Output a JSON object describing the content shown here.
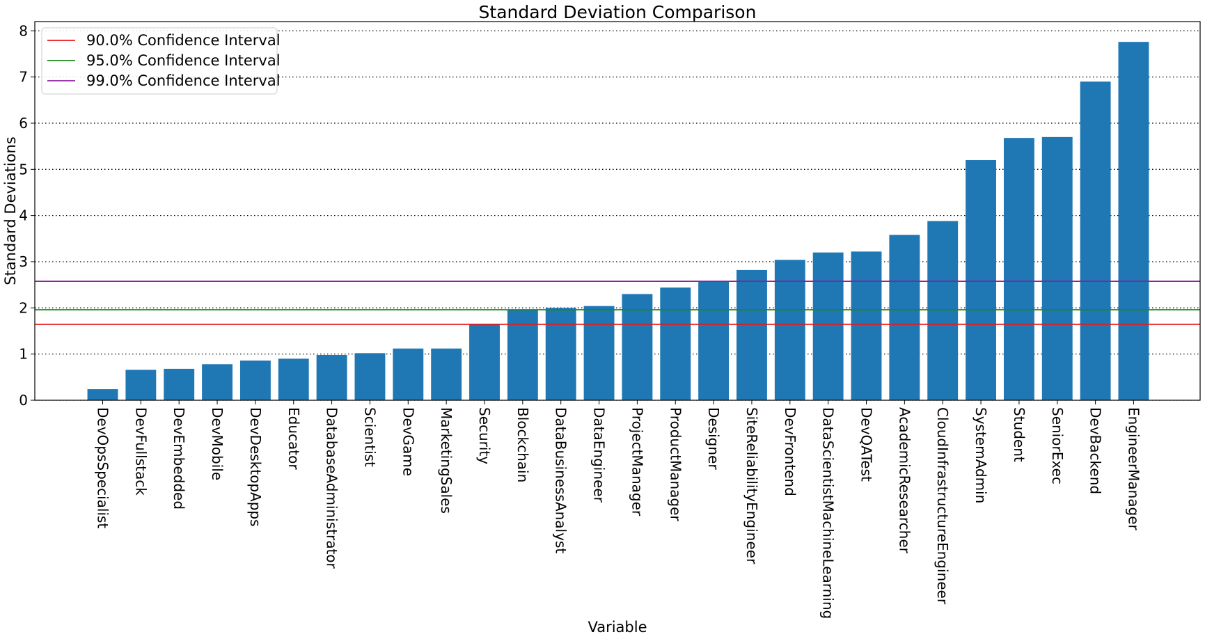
{
  "chart_data": {
    "type": "bar",
    "title": "Standard Deviation Comparison",
    "xlabel": "Variable",
    "ylabel": "Standard Deviations",
    "ylim": [
      0,
      8.2
    ],
    "yticks": [
      0,
      1,
      2,
      3,
      4,
      5,
      6,
      7,
      8
    ],
    "grid": "horizontal dotted",
    "bar_color": "#1f77b4",
    "categories": [
      "DevOpsSpecialist",
      "DevFullstack",
      "DevEmbedded",
      "DevMobile",
      "DevDesktopApps",
      "Educator",
      "DatabaseAdministrator",
      "Scientist",
      "DevGame",
      "MarketingSales",
      "Security",
      "Blockchain",
      "DataBusinessAnalyst",
      "DataEngineer",
      "ProjectManager",
      "ProductManager",
      "Designer",
      "SiteReliabilityEngineer",
      "DevFrontend",
      "DataScientistMachineLearning",
      "DevQATest",
      "AcademicResearcher",
      "CloudInfrastructureEngineer",
      "SystemAdmin",
      "Student",
      "SeniorExec",
      "DevBackend",
      "EngineerManager"
    ],
    "values": [
      0.24,
      0.66,
      0.68,
      0.78,
      0.86,
      0.9,
      0.98,
      1.02,
      1.12,
      1.12,
      1.64,
      1.96,
      2.0,
      2.04,
      2.3,
      2.44,
      2.58,
      2.82,
      3.04,
      3.2,
      3.22,
      3.58,
      3.88,
      5.2,
      5.68,
      5.7,
      6.9,
      7.76
    ],
    "reference_lines": [
      {
        "name": "90.0% Confidence Interval",
        "value": 1.645,
        "color": "#e6191a"
      },
      {
        "name": "95.0% Confidence Interval",
        "value": 1.96,
        "color": "#1a8a1a"
      },
      {
        "name": "99.0% Confidence Interval",
        "value": 2.576,
        "color": "#8c1fa0"
      }
    ],
    "legend_position": "top-left"
  }
}
